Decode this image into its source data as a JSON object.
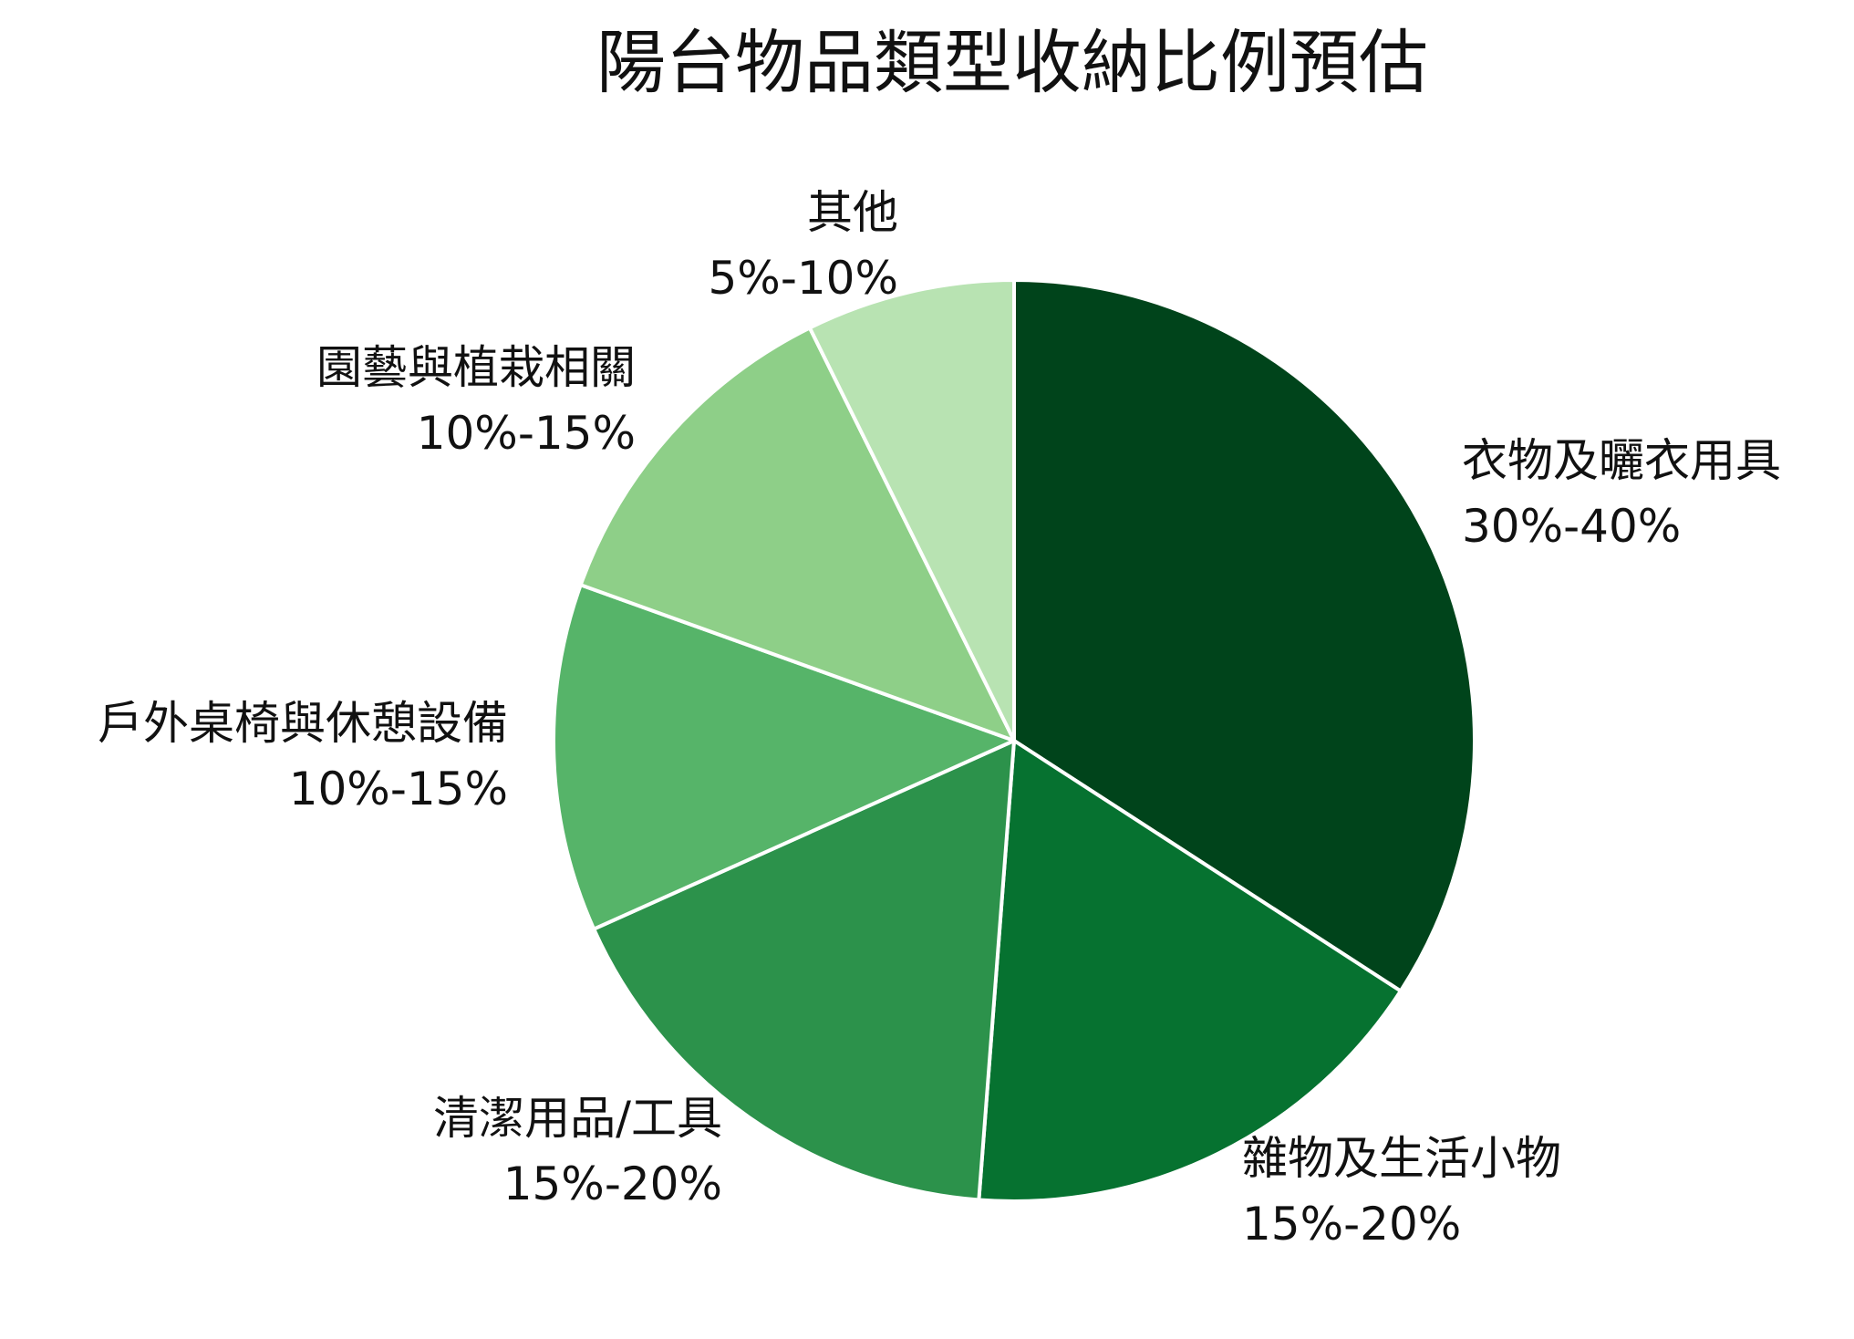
{
  "chart_data": {
    "type": "pie",
    "title": "陽台物品類型收納比例預估",
    "slices": [
      {
        "label": "衣物及曬衣用具",
        "range_text": "30%-40%",
        "value": 35,
        "color": "#00441b"
      },
      {
        "label": "雜物及生活小物",
        "range_text": "15%-20%",
        "value": 17.5,
        "color": "#067230"
      },
      {
        "label": "清潔用品/工具",
        "range_text": "15%-20%",
        "value": 17.5,
        "color": "#2c924b"
      },
      {
        "label": "戶外桌椅與休憩設備",
        "range_text": "10%-15%",
        "value": 12.5,
        "color": "#56b469"
      },
      {
        "label": "園藝與植栽相關",
        "range_text": "10%-15%",
        "value": 12.5,
        "color": "#8ecf88"
      },
      {
        "label": "其他",
        "range_text": "5%-10%",
        "value": 7.5,
        "color": "#b8e3b2"
      }
    ],
    "start_angle": "top",
    "direction": "clockwise",
    "slice_border_color": "#ffffff"
  }
}
